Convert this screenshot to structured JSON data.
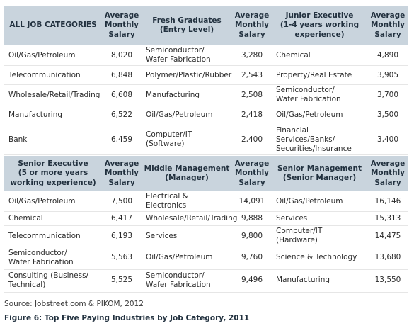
{
  "table1": {
    "headers": [
      "ALL JOB CATEGORIES",
      "Average\nMonthly\nSalary",
      "Fresh Graduates\n(Entry Level)",
      "Average\nMonthly\nSalary",
      "Junior Executive\n(1-4 years working\nexperience)",
      "Average\nMonthly\nSalary"
    ],
    "rows": [
      [
        "Oil/Gas/Petroleum",
        "8,020",
        "Semiconductor/\nWafer Fabrication",
        "3,280",
        "Chemical",
        "4,890"
      ],
      [
        "Telecommunication",
        "6,848",
        "Polymer/Plastic/Rubber",
        "2,543",
        "Property/Real Estate",
        "3,905"
      ],
      [
        "Wholesale/Retail/Trading",
        "6,608",
        "Manufacturing",
        "2,508",
        "Semiconductor/\nWafer Fabrication",
        "3,700"
      ],
      [
        "Manufacturing",
        "6,522",
        "Oil/Gas/Petroleum",
        "2,418",
        "Oil/Gas/Petroleum",
        "3,500"
      ],
      [
        "Bank",
        "6,459",
        "Computer/IT (Software)",
        "2,400",
        "Financial Services/Banks/\nSecurities/Insurance",
        "3,400"
      ]
    ]
  },
  "table2": {
    "headers": [
      "Senior Executive\n(5 or more years\nworking experience)",
      "Average\nMonthly\nSalary",
      "Middle Management\n(Manager)",
      "Average\nMonthly\nSalary",
      "Senior Management\n(Senior Manager)",
      "Average\nMonthly\nSalary"
    ],
    "rows": [
      [
        "Oil/Gas/Petroleum",
        "7,500",
        "Electrical & Electronics",
        "14,091",
        "Oil/Gas/Petroleum",
        "16,146"
      ],
      [
        "Chemical",
        "6,417",
        "Wholesale/Retail/Trading",
        "9,888",
        "Services",
        "15,313"
      ],
      [
        "Telecommunication",
        "6,193",
        "Services",
        "9,800",
        "Computer/IT (Hardware)",
        "14,475"
      ],
      [
        "Semiconductor/\nWafer Fabrication",
        "5,563",
        "Oil/Gas/Petroleum",
        "9,760",
        "Science & Technology",
        "13,680"
      ],
      [
        "Consulting (Business/\nTechnical)",
        "5,525",
        "Semiconductor/\nWafer Fabrication",
        "9,496",
        "Manufacturing",
        "13,550"
      ]
    ]
  },
  "source": "Source: Jobstreet.com & PIKOM, 2012",
  "caption": "Figure 6: Top Five Paying Industries by Job Category, 2011",
  "colors": {
    "header_bg": "#c9d4dd",
    "header_text": "#22313f",
    "body_text": "#2b2b2b"
  }
}
